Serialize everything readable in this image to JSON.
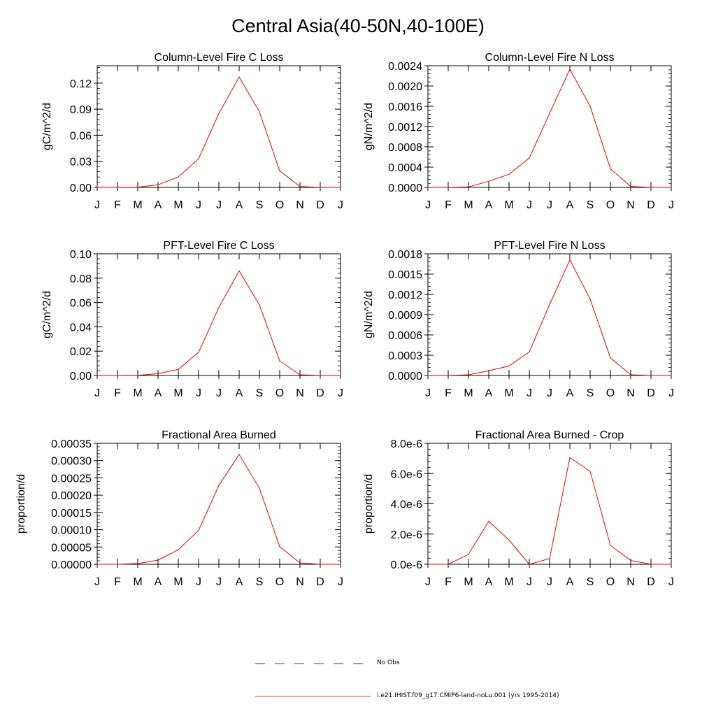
{
  "page_title": "Central Asia(40-50N,40-100E)",
  "months": [
    "J",
    "F",
    "M",
    "A",
    "M",
    "J",
    "J",
    "A",
    "S",
    "O",
    "N",
    "D",
    "J"
  ],
  "legend": {
    "obs_label": "No Obs",
    "model_label": "i.e21.IHIST.f09_g17.CMIP6-land-noLu.001 (yrs 1995-2014)",
    "obs_color": "#000000",
    "model_color": "#e60000"
  },
  "chart_data": [
    {
      "type": "line",
      "title": "Column-Level Fire C Loss",
      "ylabel": "gC/m^2/d",
      "ylim": [
        0,
        0.14
      ],
      "yticks": [
        0,
        0.03,
        0.06,
        0.09,
        0.12
      ],
      "ytick_labels": [
        "0.00",
        "0.03",
        "0.06",
        "0.09",
        "0.12"
      ],
      "x": [
        "J",
        "F",
        "M",
        "A",
        "M",
        "J",
        "J",
        "A",
        "S",
        "O",
        "N",
        "D",
        "J"
      ],
      "series": [
        {
          "values": [
            0.0,
            0.0,
            0.0002,
            0.003,
            0.012,
            0.033,
            0.085,
            0.127,
            0.087,
            0.019,
            0.001,
            0.0,
            0.0
          ]
        }
      ]
    },
    {
      "type": "line",
      "title": "Column-Level Fire N Loss",
      "ylabel": "gN/m^2/d",
      "ylim": [
        0,
        0.0024
      ],
      "yticks": [
        0,
        0.0004,
        0.0008,
        0.0012,
        0.0016,
        0.002,
        0.0024
      ],
      "ytick_labels": [
        "0.0000",
        "0.0004",
        "0.0008",
        "0.0012",
        "0.0016",
        "0.0020",
        "0.0024"
      ],
      "x": [
        "J",
        "F",
        "M",
        "A",
        "M",
        "J",
        "J",
        "A",
        "S",
        "O",
        "N",
        "D",
        "J"
      ],
      "series": [
        {
          "values": [
            0.0,
            0.0,
            1e-05,
            0.00012,
            0.00026,
            0.00058,
            0.00146,
            0.00233,
            0.0016,
            0.00037,
            2e-05,
            0.0,
            0.0
          ]
        }
      ]
    },
    {
      "type": "line",
      "title": "PFT-Level Fire C Loss",
      "ylabel": "gC/m^2/d",
      "ylim": [
        0,
        0.1
      ],
      "yticks": [
        0,
        0.02,
        0.04,
        0.06,
        0.08,
        0.1
      ],
      "ytick_labels": [
        "0.00",
        "0.02",
        "0.04",
        "0.06",
        "0.08",
        "0.10"
      ],
      "x": [
        "J",
        "F",
        "M",
        "A",
        "M",
        "J",
        "J",
        "A",
        "S",
        "O",
        "N",
        "D",
        "J"
      ],
      "series": [
        {
          "values": [
            0.0,
            0.0,
            0.0002,
            0.0015,
            0.005,
            0.019,
            0.056,
            0.086,
            0.058,
            0.012,
            0.0006,
            0.0,
            0.0
          ]
        }
      ]
    },
    {
      "type": "line",
      "title": "PFT-Level Fire N Loss",
      "ylabel": "gN/m^2/d",
      "ylim": [
        0,
        0.0018
      ],
      "yticks": [
        0,
        0.0003,
        0.0006,
        0.0009,
        0.0012,
        0.0015,
        0.0018
      ],
      "ytick_labels": [
        "0.0000",
        "0.0003",
        "0.0006",
        "0.0009",
        "0.0012",
        "0.0015",
        "0.0018"
      ],
      "x": [
        "J",
        "F",
        "M",
        "A",
        "M",
        "J",
        "J",
        "A",
        "S",
        "O",
        "N",
        "D",
        "J"
      ],
      "series": [
        {
          "values": [
            0.0,
            0.0,
            1e-05,
            7e-05,
            0.00014,
            0.00035,
            0.00105,
            0.00171,
            0.00113,
            0.00026,
            1e-05,
            0.0,
            0.0
          ]
        }
      ]
    },
    {
      "type": "line",
      "title": "Fractional Area Burned",
      "ylabel": "proportion/d",
      "ylim": [
        0,
        0.00035
      ],
      "yticks": [
        0,
        5e-05,
        0.0001,
        0.00015,
        0.0002,
        0.00025,
        0.0003,
        0.00035
      ],
      "ytick_labels": [
        "0.00000",
        "0.00005",
        "0.00010",
        "0.00015",
        "0.00020",
        "0.00025",
        "0.00030",
        "0.00035"
      ],
      "x": [
        "J",
        "F",
        "M",
        "A",
        "M",
        "J",
        "J",
        "A",
        "S",
        "O",
        "N",
        "D",
        "J"
      ],
      "series": [
        {
          "values": [
            0.0,
            0.0,
            2e-06,
            1.2e-05,
            4.2e-05,
            9.8e-05,
            0.000228,
            0.000318,
            0.00022,
            5.1e-05,
            4e-06,
            0.0,
            0.0
          ]
        }
      ]
    },
    {
      "type": "line",
      "title": "Fractional Area Burned - Crop",
      "ylabel": "proportion/d",
      "ylim": [
        0,
        8e-06
      ],
      "yticks": [
        0,
        2e-06,
        4e-06,
        6e-06,
        8e-06
      ],
      "ytick_labels": [
        "0.0e-6",
        "2.0e-6",
        "4.0e-6",
        "6.0e-6",
        "8.0e-6"
      ],
      "x": [
        "J",
        "F",
        "M",
        "A",
        "M",
        "J",
        "J",
        "A",
        "S",
        "O",
        "N",
        "D",
        "J"
      ],
      "series": [
        {
          "values": [
            0.0,
            0.0,
            6.5e-07,
            2.85e-06,
            1.6e-06,
            0.0,
            3.8e-07,
            7.05e-06,
            6.15e-06,
            1.25e-06,
            2.5e-07,
            0.0,
            0.0
          ]
        }
      ]
    }
  ]
}
